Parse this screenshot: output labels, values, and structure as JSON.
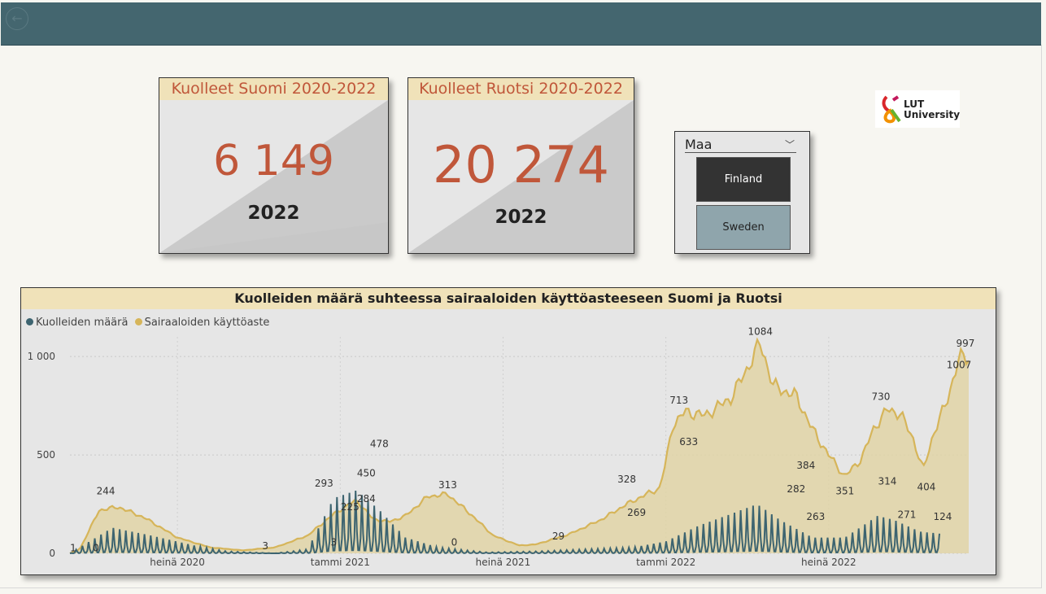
{
  "header": {
    "back_icon": "back-arrow-icon"
  },
  "cards": [
    {
      "title": "Kuolleet Suomi 2020-2022",
      "value": "6 149",
      "year": "2022"
    },
    {
      "title": "Kuolleet Ruotsi 2020-2022",
      "value": "20 274",
      "year": "2022"
    }
  ],
  "slicer": {
    "title": "Maa",
    "options": [
      {
        "label": "Finland",
        "selected": true
      },
      {
        "label": "Sweden",
        "selected": false
      }
    ]
  },
  "logo": {
    "line1": "LUT",
    "line2": "University"
  },
  "colors": {
    "deaths": "#3d6470",
    "occupancy": "#d6b55a",
    "occupancy_fill": "#e1d3a6",
    "accent": "#c0573a",
    "header_bg": "#44666f"
  },
  "chart_data": {
    "type": "line",
    "title": "Kuolleiden määrä suhteessa sairaaloiden käyttöasteeseen Suomi ja Ruotsi",
    "x_range": [
      "2020-03",
      "2022-11"
    ],
    "x_ticks": [
      "heinä 2020",
      "tammi 2021",
      "heinä 2021",
      "tammi 2022",
      "heinä 2022"
    ],
    "ylim": [
      0,
      1100
    ],
    "y_ticks": [
      {
        "v": 0,
        "label": "0"
      },
      {
        "v": 500,
        "label": "500"
      },
      {
        "v": 1000,
        "label": "1 000"
      }
    ],
    "grid": true,
    "legend_position": "top-left",
    "series": [
      {
        "name": "Kuolleiden määrä",
        "style": "spiky",
        "points": [
          [
            2020.17,
            0
          ],
          [
            2020.3,
            130
          ],
          [
            2020.42,
            90
          ],
          [
            2020.55,
            40
          ],
          [
            2020.65,
            10
          ],
          [
            2020.8,
            0
          ],
          [
            2020.9,
            20
          ],
          [
            2020.98,
            280
          ],
          [
            2021.05,
            320
          ],
          [
            2021.12,
            220
          ],
          [
            2021.2,
            80
          ],
          [
            2021.3,
            30
          ],
          [
            2021.45,
            5
          ],
          [
            2021.6,
            10
          ],
          [
            2021.75,
            20
          ],
          [
            2021.9,
            30
          ],
          [
            2022.0,
            60
          ],
          [
            2022.1,
            140
          ],
          [
            2022.2,
            200
          ],
          [
            2022.28,
            250
          ],
          [
            2022.35,
            170
          ],
          [
            2022.45,
            80
          ],
          [
            2022.55,
            80
          ],
          [
            2022.65,
            190
          ],
          [
            2022.7,
            170
          ],
          [
            2022.78,
            110
          ],
          [
            2022.84,
            100
          ]
        ]
      },
      {
        "name": "Sairaaloiden käyttöaste",
        "style": "area",
        "points": [
          [
            2020.17,
            0
          ],
          [
            2020.2,
            20
          ],
          [
            2020.26,
            220
          ],
          [
            2020.32,
            235
          ],
          [
            2020.4,
            180
          ],
          [
            2020.5,
            80
          ],
          [
            2020.6,
            30
          ],
          [
            2020.7,
            15
          ],
          [
            2020.8,
            30
          ],
          [
            2020.9,
            90
          ],
          [
            2020.98,
            200
          ],
          [
            2021.05,
            270
          ],
          [
            2021.1,
            175
          ],
          [
            2021.15,
            160
          ],
          [
            2021.2,
            190
          ],
          [
            2021.27,
            290
          ],
          [
            2021.33,
            300
          ],
          [
            2021.4,
            200
          ],
          [
            2021.47,
            90
          ],
          [
            2021.55,
            40
          ],
          [
            2021.6,
            45
          ],
          [
            2021.7,
            95
          ],
          [
            2021.8,
            170
          ],
          [
            2021.88,
            250
          ],
          [
            2021.94,
            300
          ],
          [
            2021.98,
            330
          ],
          [
            2022.0,
            460
          ],
          [
            2022.02,
            650
          ],
          [
            2022.06,
            720
          ],
          [
            2022.12,
            700
          ],
          [
            2022.2,
            790
          ],
          [
            2022.25,
            940
          ],
          [
            2022.29,
            1070
          ],
          [
            2022.33,
            850
          ],
          [
            2022.4,
            800
          ],
          [
            2022.45,
            630
          ],
          [
            2022.5,
            500
          ],
          [
            2022.55,
            390
          ],
          [
            2022.6,
            480
          ],
          [
            2022.64,
            640
          ],
          [
            2022.68,
            730
          ],
          [
            2022.72,
            710
          ],
          [
            2022.76,
            580
          ],
          [
            2022.79,
            420
          ],
          [
            2022.82,
            600
          ],
          [
            2022.86,
            760
          ],
          [
            2022.9,
            990
          ],
          [
            2022.93,
            1000
          ]
        ]
      }
    ],
    "data_labels": [
      {
        "text": "1",
        "x": 2020.18,
        "y": 10
      },
      {
        "text": "0",
        "x": 2020.25,
        "y": 10
      },
      {
        "text": "244",
        "x": 2020.28,
        "y": 300
      },
      {
        "text": "3",
        "x": 2020.77,
        "y": 20
      },
      {
        "text": "293",
        "x": 2020.95,
        "y": 340
      },
      {
        "text": "478",
        "x": 2021.12,
        "y": 540
      },
      {
        "text": "450",
        "x": 2021.08,
        "y": 390
      },
      {
        "text": "225",
        "x": 2021.03,
        "y": 220
      },
      {
        "text": "284",
        "x": 2021.08,
        "y": 260
      },
      {
        "text": "3",
        "x": 2020.98,
        "y": 40
      },
      {
        "text": "0",
        "x": 2021.35,
        "y": 40
      },
      {
        "text": "313",
        "x": 2021.33,
        "y": 330
      },
      {
        "text": "29",
        "x": 2021.67,
        "y": 70
      },
      {
        "text": "328",
        "x": 2021.88,
        "y": 360
      },
      {
        "text": "269",
        "x": 2021.91,
        "y": 190
      },
      {
        "text": "713",
        "x": 2022.04,
        "y": 760
      },
      {
        "text": "633",
        "x": 2022.07,
        "y": 550
      },
      {
        "text": "1084",
        "x": 2022.29,
        "y": 1110
      },
      {
        "text": "384",
        "x": 2022.43,
        "y": 430
      },
      {
        "text": "282",
        "x": 2022.4,
        "y": 310
      },
      {
        "text": "263",
        "x": 2022.46,
        "y": 170
      },
      {
        "text": "351",
        "x": 2022.55,
        "y": 300
      },
      {
        "text": "730",
        "x": 2022.66,
        "y": 780
      },
      {
        "text": "314",
        "x": 2022.68,
        "y": 350
      },
      {
        "text": "271",
        "x": 2022.74,
        "y": 180
      },
      {
        "text": "404",
        "x": 2022.8,
        "y": 320
      },
      {
        "text": "124",
        "x": 2022.85,
        "y": 170
      },
      {
        "text": "997",
        "x": 2022.92,
        "y": 1050
      },
      {
        "text": "1007",
        "x": 2022.9,
        "y": 940
      }
    ]
  }
}
